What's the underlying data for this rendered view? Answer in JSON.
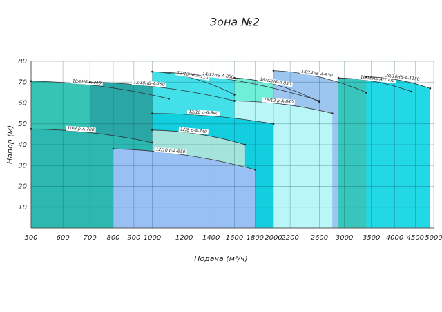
{
  "chart_data": {
    "type": "zones",
    "title": "Зона №2",
    "xlabel": "Подача (м³/ч)",
    "ylabel": "Напор (м)",
    "xscale": "log",
    "xlim": [
      500,
      5000
    ],
    "xticks": [
      500,
      600,
      700,
      800,
      900,
      1000,
      1200,
      1400,
      1600,
      1800,
      2000,
      2200,
      2600,
      3000,
      3500,
      4000,
      4500,
      5000
    ],
    "ylim": [
      0,
      80
    ],
    "yticks": [
      10,
      20,
      30,
      40,
      50,
      60,
      70,
      80
    ],
    "grid": true,
    "zones": [
      {
        "name": "10/8НБ-А-710",
        "x": [
          500,
          1100
        ],
        "head": [
          70.5,
          62
        ],
        "color": "#36c4b4"
      },
      {
        "name": "12/10НБ-А-750",
        "x": [
          700,
          1600
        ],
        "head": [
          70,
          61
        ],
        "color": "#2aa6a6"
      },
      {
        "name": "12/10НБ-А-710",
        "x": [
          1000,
          1600
        ],
        "head": [
          75,
          64
        ],
        "color": "#3a9aa6"
      },
      {
        "name": "14/12НБ-А-850",
        "x": [
          1000,
          2600
        ],
        "head": [
          75,
          61
        ],
        "color": "#44e0ea"
      },
      {
        "name": "16/12НБ-А-850",
        "x": [
          1600,
          2600
        ],
        "head": [
          72,
          60.5
        ],
        "color": "#70eed8"
      },
      {
        "name": "16/14НБ-А-930",
        "x": [
          2000,
          3400
        ],
        "head": [
          75.5,
          65
        ],
        "color": "#9cc6f0"
      },
      {
        "name": "18/16НБ-А-1000",
        "x": [
          2900,
          4400
        ],
        "head": [
          72,
          65.5
        ],
        "color": "#38c6bc"
      },
      {
        "name": "20/16НБ-А-1150",
        "x": [
          3400,
          4900
        ],
        "head": [
          72.5,
          67
        ],
        "color": "#22d8e6"
      },
      {
        "name": "16/12 р-А-840",
        "x": [
          1600,
          2800
        ],
        "head": [
          61,
          55
        ],
        "color": "#b8f6f8"
      },
      {
        "name": "12/10 р-А-840",
        "x": [
          1000,
          2000
        ],
        "head": [
          55,
          50
        ],
        "color": "#12cede"
      },
      {
        "name": "10/8 р-А-700",
        "x": [
          500,
          1000
        ],
        "head": [
          47.5,
          41
        ],
        "color": "#2cb8b0"
      },
      {
        "name": "12/8 р-А-740",
        "x": [
          1000,
          1700
        ],
        "head": [
          47,
          40
        ],
        "color": "#a4e4dc"
      },
      {
        "name": "12/10 р-А-650",
        "x": [
          800,
          1800
        ],
        "head": [
          38,
          28
        ],
        "color": "#98c0f4"
      }
    ]
  }
}
